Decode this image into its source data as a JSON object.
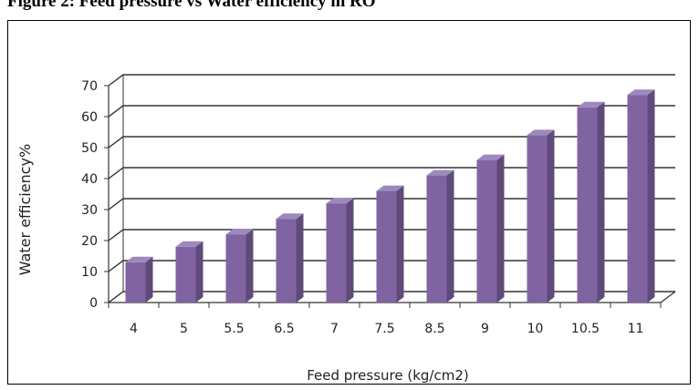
{
  "caption": "Figure 2: Feed pressure vs Water efficiency in RO",
  "chart_data": {
    "type": "bar",
    "title": "",
    "xlabel": "Feed pressure (kg/cm2)",
    "ylabel": "Water efficiency%",
    "categories": [
      "4",
      "5",
      "5.5",
      "6.5",
      "7",
      "7.5",
      "8.5",
      "9",
      "10",
      "10.5",
      "11"
    ],
    "series": [
      {
        "values": [
          13,
          18,
          22,
          27,
          32,
          36,
          41,
          46,
          54,
          63,
          67
        ]
      }
    ],
    "ylim": [
      0,
      70
    ],
    "yticks": [
      0,
      10,
      20,
      30,
      40,
      50,
      60,
      70
    ],
    "grid": true,
    "legend": "none",
    "style": "3d-column",
    "colors": {
      "bar_front": "#8064A2",
      "bar_top": "#9E88BD",
      "bar_side": "#5F4A7A",
      "gridline": "#333333"
    }
  }
}
